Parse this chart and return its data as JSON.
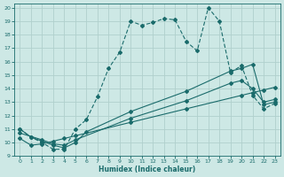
{
  "xlabel": "Humidex (Indice chaleur)",
  "xlim": [
    -0.5,
    23.5
  ],
  "ylim": [
    9,
    20.3
  ],
  "yticks": [
    9,
    10,
    11,
    12,
    13,
    14,
    15,
    16,
    17,
    18,
    19,
    20
  ],
  "xticks": [
    0,
    1,
    2,
    3,
    4,
    5,
    6,
    7,
    8,
    9,
    10,
    11,
    12,
    13,
    14,
    15,
    16,
    17,
    18,
    19,
    20,
    21,
    22,
    23
  ],
  "bg_color": "#cde8e5",
  "line_color": "#1a6b6b",
  "line1_x": [
    0,
    1,
    2,
    3,
    4,
    5,
    6,
    7,
    8,
    9,
    10,
    11,
    12,
    13,
    14,
    15,
    16,
    17,
    18,
    19,
    20,
    21,
    22,
    23
  ],
  "line1_y": [
    11.0,
    10.4,
    10.0,
    9.5,
    9.5,
    11.0,
    11.7,
    13.4,
    15.5,
    16.7,
    19.0,
    18.7,
    18.9,
    19.2,
    19.1,
    17.5,
    16.8,
    20.0,
    19.0,
    15.2,
    15.7,
    13.5,
    12.5,
    12.9
  ],
  "line2_x": [
    0,
    1,
    2,
    3,
    4,
    5,
    6,
    10,
    15,
    19,
    20,
    21,
    22,
    23
  ],
  "line2_y": [
    11.0,
    10.4,
    10.1,
    9.8,
    9.6,
    10.0,
    10.8,
    12.3,
    13.8,
    15.3,
    15.5,
    15.8,
    12.8,
    13.0
  ],
  "line3_x": [
    0,
    2,
    3,
    4,
    5,
    10,
    15,
    19,
    20,
    21,
    22,
    23
  ],
  "line3_y": [
    10.7,
    10.2,
    9.9,
    9.8,
    10.2,
    11.8,
    13.1,
    14.4,
    14.6,
    14.0,
    13.0,
    13.2
  ],
  "line4_x": [
    0,
    1,
    2,
    3,
    4,
    5,
    10,
    15,
    20,
    21,
    22,
    23
  ],
  "line4_y": [
    10.3,
    9.8,
    9.9,
    10.1,
    10.3,
    10.5,
    11.5,
    12.5,
    13.5,
    13.7,
    13.9,
    14.1
  ]
}
